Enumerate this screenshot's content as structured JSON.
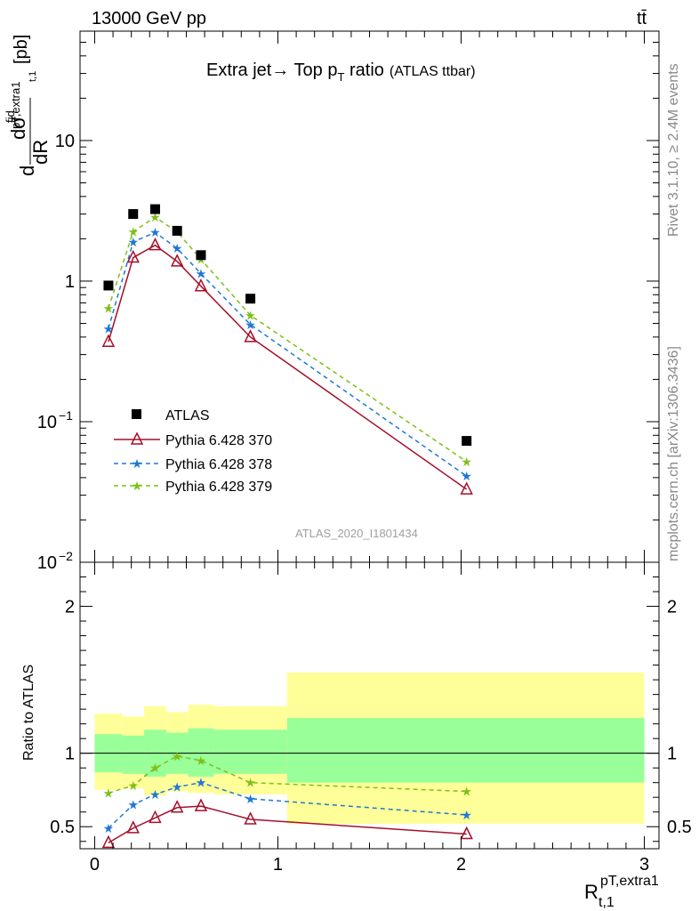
{
  "header": {
    "energy": "13000 GeV pp",
    "process": "tt̄"
  },
  "side_text": {
    "rivet": "Rivet 3.1.10, ≥ 2.4M events",
    "mcplots": "mcplots.cern.ch [arXiv:1306.3436]"
  },
  "watermark": "ATLAS_2020_I1801434",
  "chart_data": [
    {
      "type": "line",
      "title": "Extra jet→ Top p_T ratio (ATLAS ttbar)",
      "title_main": "Extra jet",
      "title_mid": " Top p",
      "title_sub": "T",
      "title_end": " ratio",
      "title_small": "(ATLAS ttbar)",
      "ylabel_parts": {
        "d1": "d",
        "sigma": "dσ",
        "fid": "fid",
        "sub": "pT,extra1",
        "sub2": "t,1",
        "dR": "dR",
        "unit": "[pb]"
      },
      "y_scale": "log",
      "ylim": [
        0.01,
        60
      ],
      "xlim": [
        -0.08,
        3.08
      ],
      "y_ticks": [
        {
          "value": 10,
          "label": "10"
        },
        {
          "value": 1,
          "label": "1"
        },
        {
          "value": 0.1,
          "label": "10",
          "exp": "−1"
        },
        {
          "value": 0.01,
          "label": "10",
          "exp": "−2"
        }
      ],
      "x": [
        0.075,
        0.21,
        0.33,
        0.45,
        0.58,
        0.85,
        2.03
      ],
      "data": {
        "name": "ATLAS",
        "values": [
          0.93,
          3.0,
          3.25,
          2.28,
          1.53,
          0.75,
          0.073
        ],
        "color": "#000000"
      },
      "series": [
        {
          "name": "Pythia 6.428 370",
          "values": [
            0.37,
            1.47,
            1.8,
            1.38,
            0.92,
            0.4,
            0.033
          ],
          "color": "#a50f2b",
          "dash": "",
          "marker": "triangle"
        },
        {
          "name": "Pythia 6.428 378",
          "values": [
            0.46,
            1.9,
            2.22,
            1.71,
            1.13,
            0.49,
            0.041
          ],
          "color": "#1f78d4",
          "dash": "5,4",
          "marker": "star"
        },
        {
          "name": "Pythia 6.428 379",
          "values": [
            0.64,
            2.25,
            2.85,
            2.24,
            1.43,
            0.57,
            0.052
          ],
          "color": "#7fbf1a",
          "dash": "5,4",
          "marker": "star"
        }
      ]
    },
    {
      "type": "line",
      "ylabel": "Ratio to ATLAS",
      "xlabel_main": "R",
      "xlabel_sup": "pT,extra1",
      "xlabel_sub": "t,1",
      "ylim": [
        0.35,
        2.3
      ],
      "xlim": [
        -0.08,
        3.08
      ],
      "y_ticks": [
        {
          "value": 0.5,
          "label": "0.5"
        },
        {
          "value": 1,
          "label": "1"
        },
        {
          "value": 2,
          "label": "2"
        }
      ],
      "x_ticks": [
        {
          "value": 0,
          "label": "0"
        },
        {
          "value": 1,
          "label": "1"
        },
        {
          "value": 2,
          "label": "2"
        },
        {
          "value": 3,
          "label": "3"
        }
      ],
      "bin_edges": [
        0,
        0.15,
        0.27,
        0.39,
        0.51,
        0.65,
        1.05,
        3.0
      ],
      "band_outer": [
        [
          0.75,
          1.27
        ],
        [
          0.76,
          1.25
        ],
        [
          0.71,
          1.32
        ],
        [
          0.74,
          1.28
        ],
        [
          0.73,
          1.33
        ],
        [
          0.72,
          1.32
        ],
        [
          0.52,
          1.55
        ]
      ],
      "band_inner": [
        [
          0.87,
          1.13
        ],
        [
          0.86,
          1.12
        ],
        [
          0.84,
          1.16
        ],
        [
          0.86,
          1.14
        ],
        [
          0.84,
          1.17
        ],
        [
          0.86,
          1.16
        ],
        [
          0.8,
          1.24
        ]
      ],
      "x": [
        0.075,
        0.21,
        0.33,
        0.45,
        0.58,
        0.85,
        2.03
      ],
      "series": [
        {
          "name": "Pythia 6.428 370",
          "values": [
            0.39,
            0.49,
            0.56,
            0.63,
            0.64,
            0.55,
            0.45
          ],
          "color": "#a50f2b",
          "dash": "",
          "marker": "triangle"
        },
        {
          "name": "Pythia 6.428 378",
          "values": [
            0.49,
            0.65,
            0.72,
            0.77,
            0.8,
            0.69,
            0.58
          ],
          "color": "#1f78d4",
          "dash": "5,4",
          "marker": "star"
        },
        {
          "name": "Pythia 6.428 379",
          "values": [
            0.73,
            0.78,
            0.9,
            0.98,
            0.95,
            0.8,
            0.74
          ],
          "color": "#7fbf1a",
          "dash": "5,4",
          "marker": "star"
        }
      ],
      "band_colors": {
        "outer": "#ffff99",
        "inner": "#99ff99"
      }
    }
  ]
}
